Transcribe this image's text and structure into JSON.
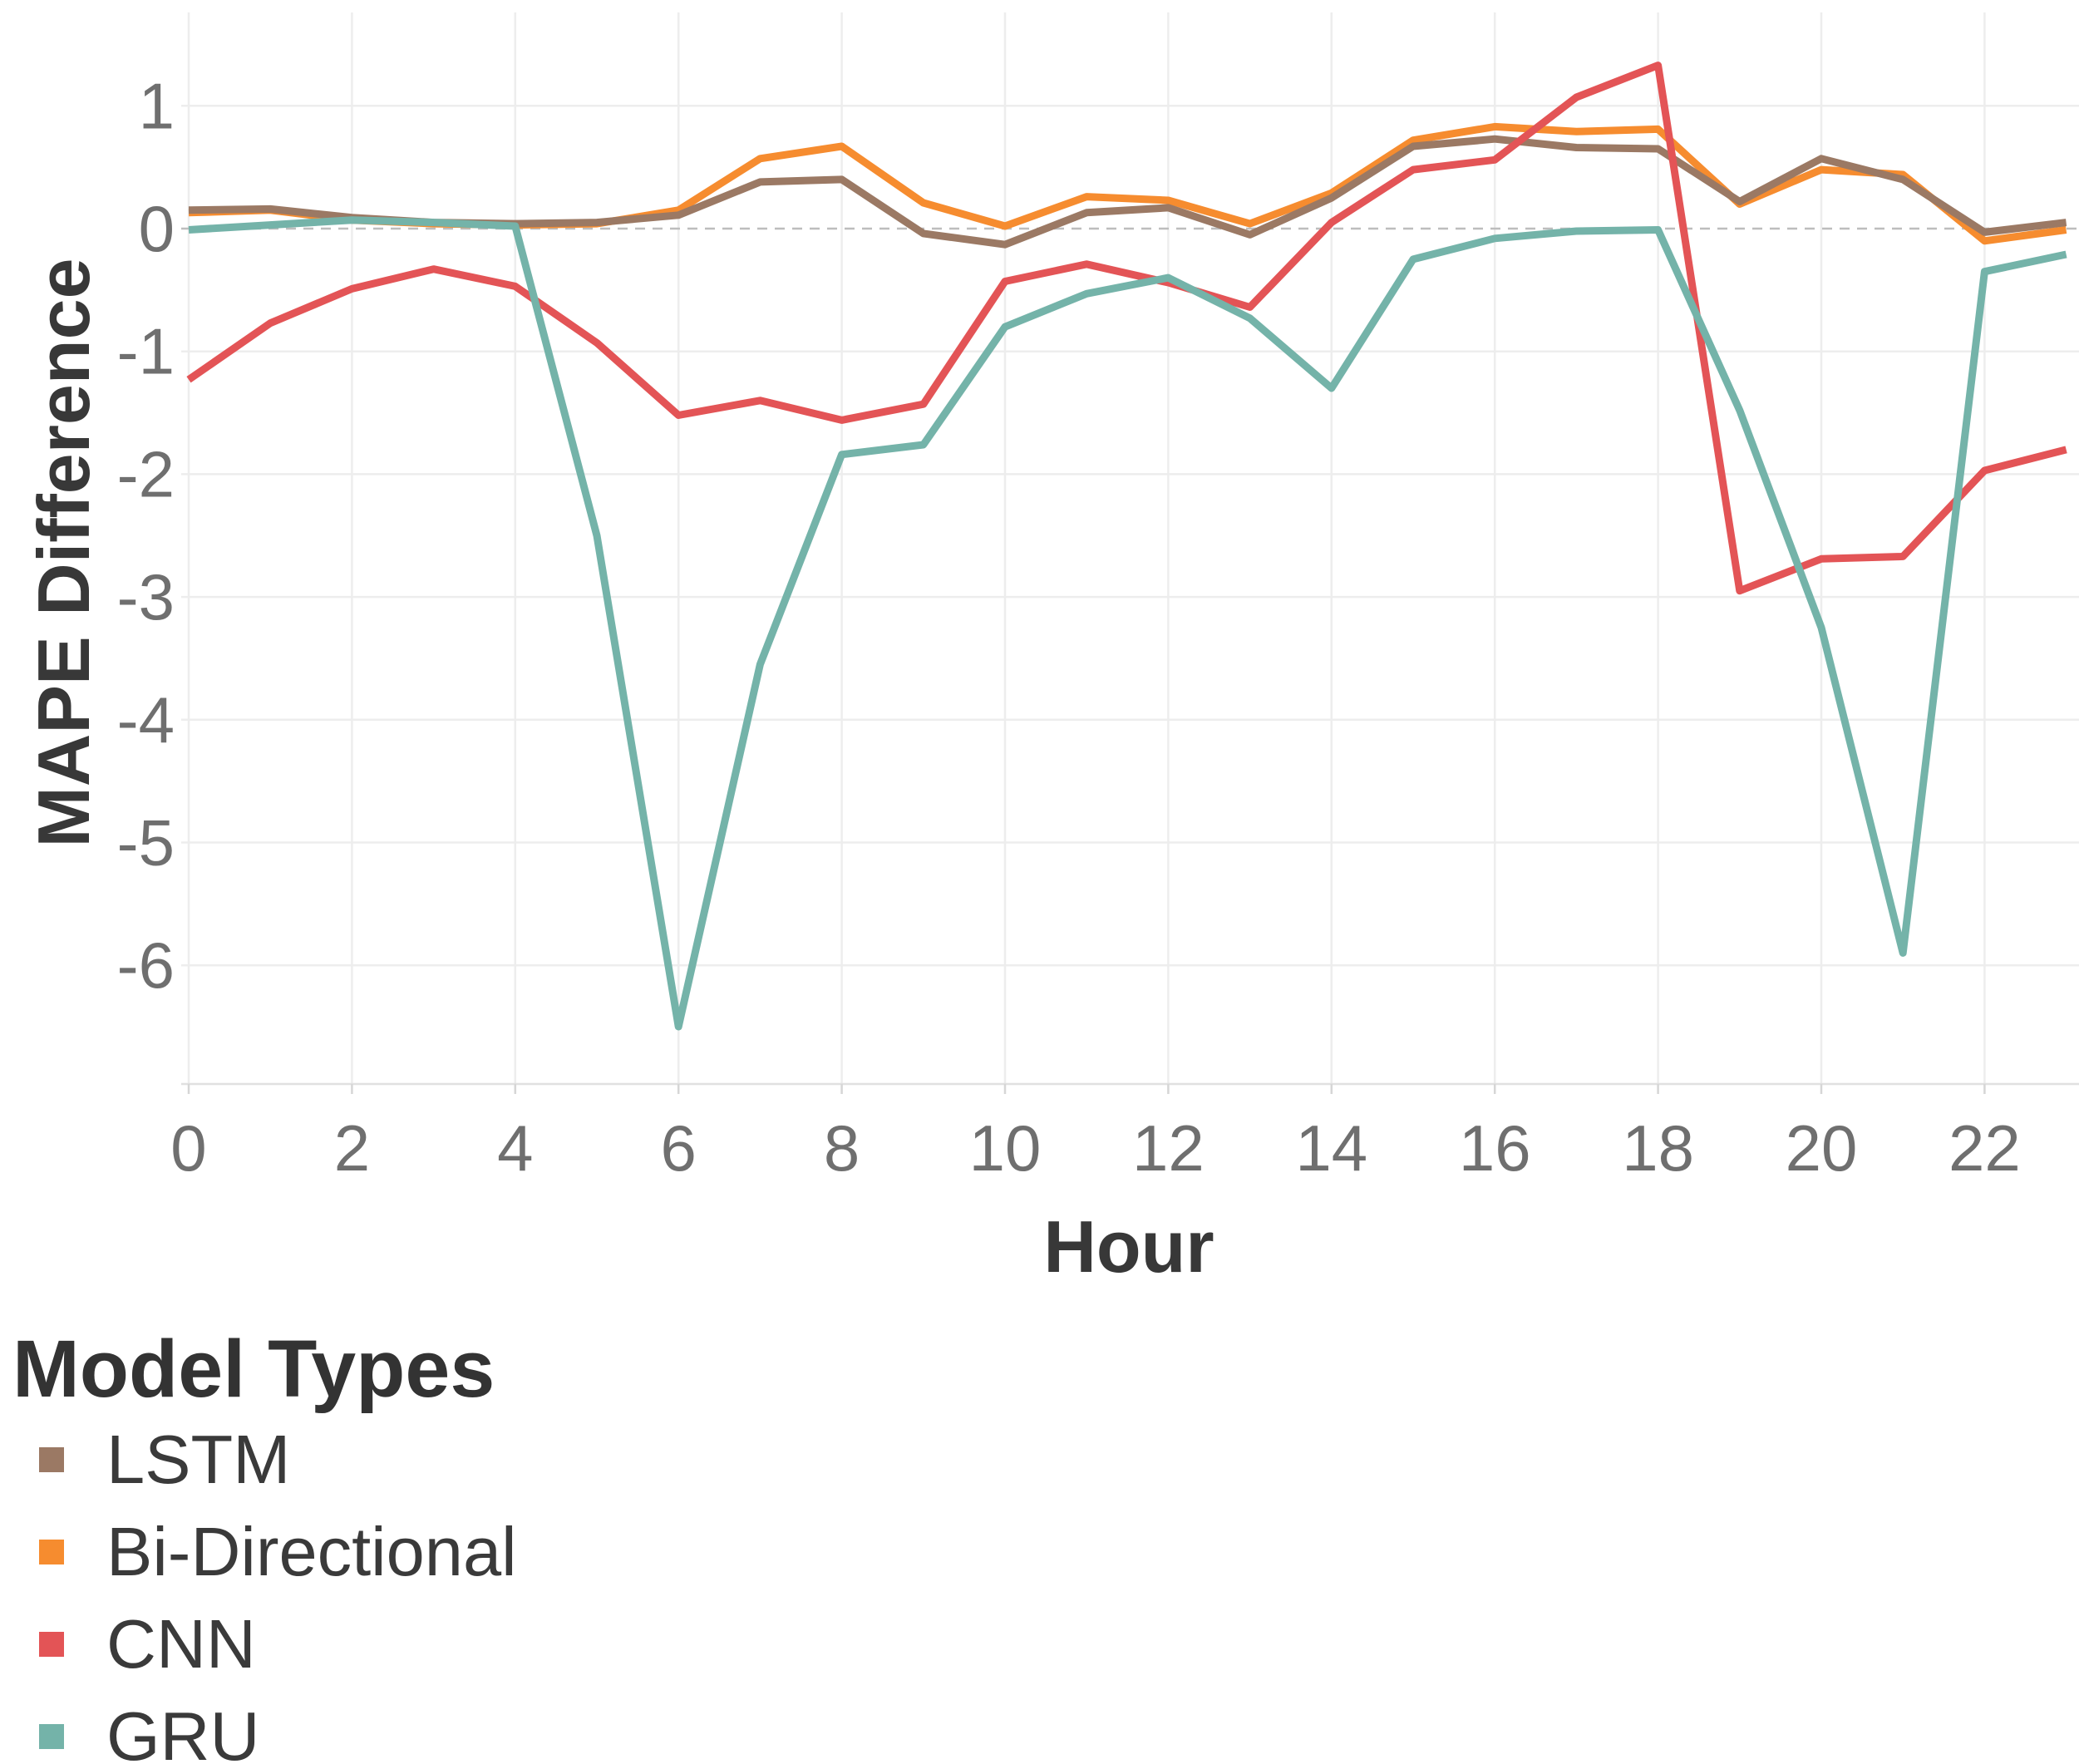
{
  "figure": {
    "background_color": "#ffffff",
    "grid_color": "#ededed",
    "zero_line_color": "#bdbdbd",
    "axis_bottom_line_color": "#e0e0e0",
    "tick_stub_color": "#d6d6d6",
    "tick_label_color": "#6f6f6f",
    "axis_title_color": "#383838"
  },
  "legend": {
    "title": "Model Types",
    "items": [
      {
        "label": "LSTM",
        "color": "#9B7964"
      },
      {
        "label": "Bi-Directional",
        "color": "#F68C2F"
      },
      {
        "label": "CNN",
        "color": "#E35456"
      },
      {
        "label": "GRU",
        "color": "#74B3A9"
      }
    ]
  },
  "chart_data": {
    "type": "line",
    "title": "",
    "xlabel": "Hour",
    "ylabel": "MAPE Difference",
    "x_ticks": [
      0,
      2,
      4,
      6,
      8,
      10,
      12,
      14,
      16,
      18,
      20,
      22
    ],
    "y_ticks": [
      1,
      0,
      -1,
      -2,
      -3,
      -4,
      -5,
      -6
    ],
    "xlim": [
      0,
      23.2
    ],
    "ylim": [
      -6.97,
      1.76
    ],
    "grid": true,
    "zero_reference_line_dashed": true,
    "legend_position": "bottom-left",
    "x": [
      0,
      1,
      2,
      3,
      4,
      5,
      6,
      7,
      8,
      9,
      10,
      11,
      12,
      13,
      14,
      15,
      16,
      17,
      18,
      19,
      20,
      21,
      22,
      23
    ],
    "series": [
      {
        "name": "LSTM",
        "color": "#9B7964",
        "values": [
          0.15,
          0.16,
          0.09,
          0.05,
          0.04,
          0.05,
          0.11,
          0.38,
          0.4,
          -0.04,
          -0.13,
          0.13,
          0.17,
          -0.05,
          0.25,
          0.67,
          0.73,
          0.66,
          0.65,
          0.22,
          0.57,
          0.4,
          -0.03,
          0.05
        ]
      },
      {
        "name": "Bi-Directional",
        "color": "#F68C2F",
        "values": [
          0.13,
          0.15,
          0.07,
          0.04,
          0.03,
          0.04,
          0.15,
          0.57,
          0.67,
          0.21,
          0.02,
          0.26,
          0.23,
          0.04,
          0.29,
          0.72,
          0.83,
          0.79,
          0.81,
          0.2,
          0.48,
          0.44,
          -0.1,
          -0.01
        ]
      },
      {
        "name": "CNN",
        "color": "#E35456",
        "values": [
          -1.23,
          -0.77,
          -0.49,
          -0.33,
          -0.47,
          -0.93,
          -1.52,
          -1.4,
          -1.56,
          -1.43,
          -0.43,
          -0.29,
          -0.44,
          -0.64,
          0.05,
          0.48,
          0.56,
          1.07,
          1.33,
          -2.95,
          -2.69,
          -2.67,
          -1.97,
          -1.8
        ]
      },
      {
        "name": "GRU",
        "color": "#74B3A9",
        "values": [
          -0.01,
          0.03,
          0.07,
          0.05,
          0.02,
          -2.5,
          -6.5,
          -3.55,
          -1.84,
          -1.76,
          -0.8,
          -0.53,
          -0.4,
          -0.73,
          -1.3,
          -0.25,
          -0.08,
          -0.02,
          -0.01,
          -1.48,
          -3.25,
          -5.9,
          -0.35,
          -0.21
        ]
      }
    ]
  }
}
